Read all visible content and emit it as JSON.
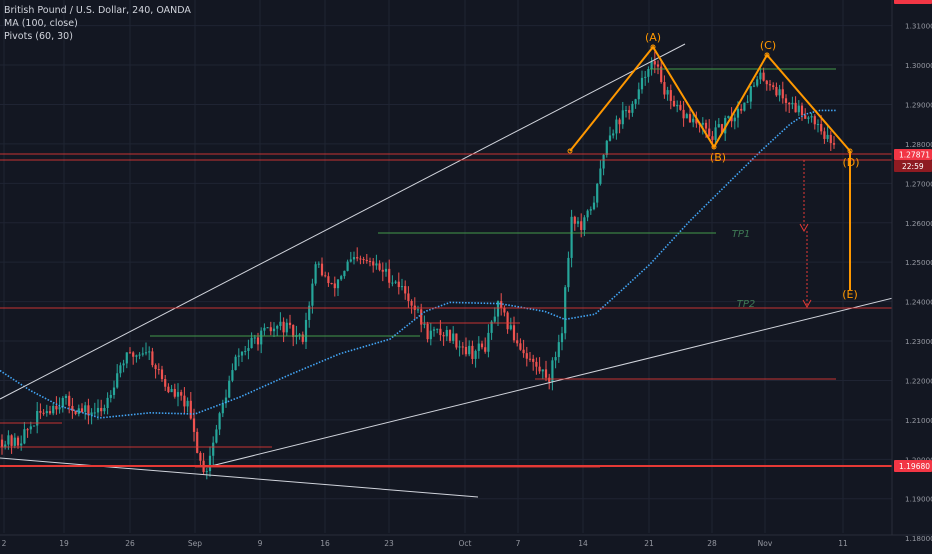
{
  "chart_data": {
    "type": "candlestick",
    "title": "British Pound / U.S. Dollar, 240, OANDA",
    "indicators": [
      "MA (100, close)",
      "Pivots (60, 30)"
    ],
    "x_ticks": [
      "2",
      "19",
      "26",
      "Sep",
      "9",
      "16",
      "23",
      "Oct",
      "7",
      "14",
      "21",
      "28",
      "Nov",
      "11"
    ],
    "y_ticks": [
      "1.31000",
      "1.30000",
      "1.29000",
      "1.28000",
      "1.27000",
      "1.26000",
      "1.25000",
      "1.24000",
      "1.23000",
      "1.22000",
      "1.21000",
      "1.20000",
      "1.19000",
      "1.18000"
    ],
    "ylim": [
      1.177,
      1.3165
    ],
    "price_labels": {
      "current": "1.27871",
      "countdown": "22:59",
      "support": "1.19680"
    },
    "pattern_labels": [
      "(A)",
      "(B)",
      "(C)",
      "(D)",
      "(E)"
    ],
    "target_labels": [
      "TP1",
      "TP2"
    ],
    "colors": {
      "background": "#131722",
      "up": "#26a69a",
      "down": "#ef5350",
      "moving_average": "#42a5f5",
      "pattern": "#ff9800",
      "resistance": "#e53935",
      "pivot_high": "#4caf50",
      "trendline": "#d1d4dc",
      "current_price_label": "#f23645"
    },
    "key_prices": {
      "A": 1.3072,
      "B": 1.2822,
      "C": 1.3055,
      "D": 1.2795,
      "E": 1.242,
      "tp1": 1.258,
      "tp2": 1.239,
      "support": 1.1968
    }
  }
}
